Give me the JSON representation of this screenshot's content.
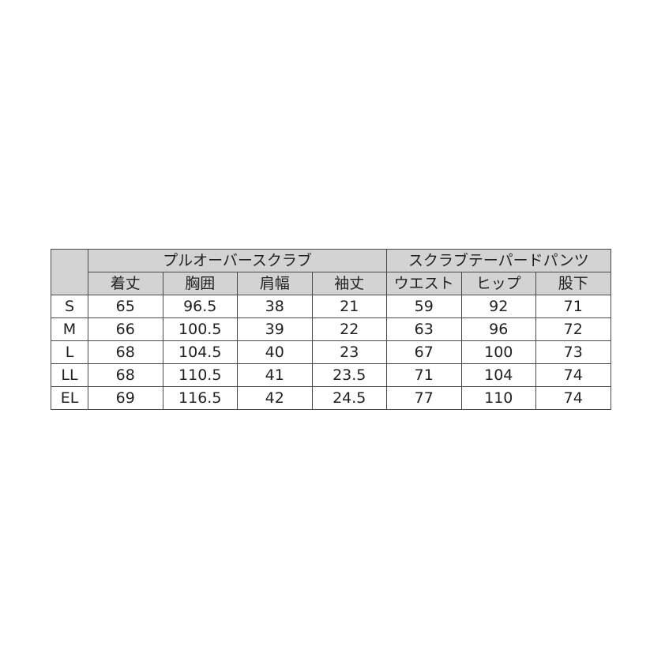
{
  "table": {
    "groups": [
      {
        "label": "プルオーバースクラブ",
        "span": 4
      },
      {
        "label": "スクラブテーパードパンツ",
        "span": 3
      }
    ],
    "columns": [
      "着丈",
      "胸囲",
      "肩幅",
      "袖丈",
      "ウエスト",
      "ヒップ",
      "股下"
    ],
    "rows": [
      {
        "size": "S",
        "values": [
          "65",
          "96.5",
          "38",
          "21",
          "59",
          "92",
          "71"
        ]
      },
      {
        "size": "M",
        "values": [
          "66",
          "100.5",
          "39",
          "22",
          "63",
          "96",
          "72"
        ]
      },
      {
        "size": "L",
        "values": [
          "68",
          "104.5",
          "40",
          "23",
          "67",
          "100",
          "73"
        ]
      },
      {
        "size": "LL",
        "values": [
          "68",
          "110.5",
          "41",
          "23.5",
          "71",
          "104",
          "74"
        ]
      },
      {
        "size": "EL",
        "values": [
          "69",
          "116.5",
          "42",
          "24.5",
          "77",
          "110",
          "74"
        ]
      }
    ],
    "header_color": "#d3d3d3",
    "border_color": "#4a4a4a"
  }
}
